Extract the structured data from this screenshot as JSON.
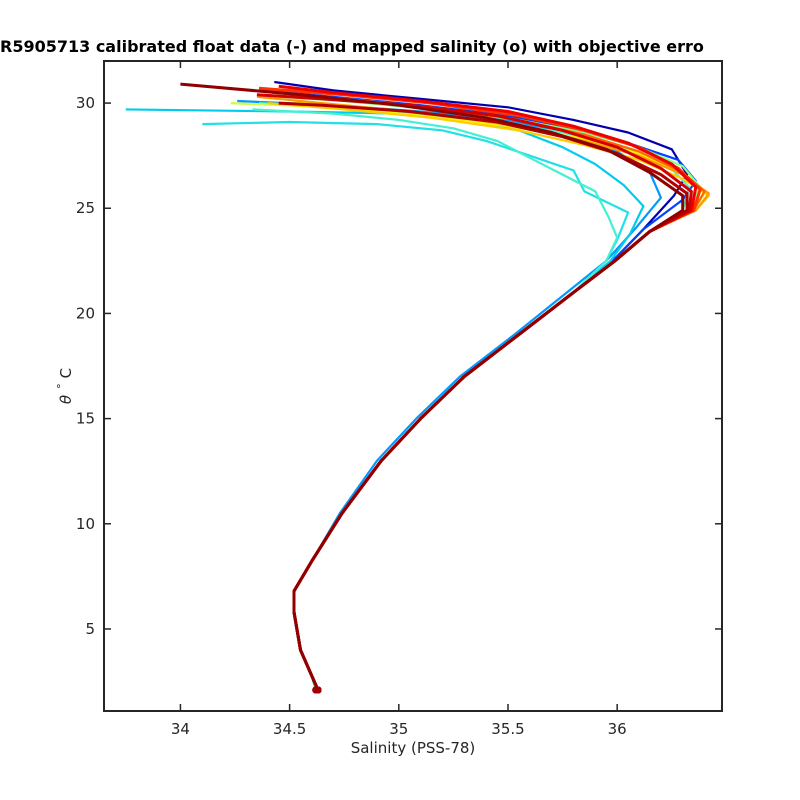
{
  "chart_data": {
    "type": "line",
    "title": "R5905713 calibrated float data (-) and mapped salinity (o) with objective erro",
    "xlabel": "Salinity (PSS-78)",
    "ylabel_symbol": "θ",
    "ylabel_degree": "°",
    "ylabel_unit": "C",
    "xlim": [
      33.65,
      36.48
    ],
    "ylim": [
      1.1,
      32.0
    ],
    "x_ticks": [
      34,
      34.5,
      35,
      35.5,
      36
    ],
    "x_tick_labels": [
      "34",
      "34.5",
      "35",
      "35.5",
      "36"
    ],
    "y_ticks": [
      5,
      10,
      15,
      20,
      25,
      30
    ],
    "y_tick_labels": [
      "5",
      "10",
      "15",
      "20",
      "25",
      "30"
    ],
    "grid": false,
    "colormap": "jet (profile index)",
    "series_colors": [
      "#0000b0",
      "#0044ff",
      "#0099ff",
      "#00ccee",
      "#22e0e8",
      "#44f0d0",
      "#55f2c0",
      "#88ff88",
      "#ccff44",
      "#ffee00",
      "#ffcc00",
      "#ff9900",
      "#ff6600",
      "#ff3300",
      "#ee0000",
      "#d40000",
      "#b00000",
      "#900000"
    ],
    "series": [
      {
        "x": [
          34.63,
          34.6,
          34.55,
          34.52,
          34.52,
          34.6,
          34.74,
          34.92,
          35.1,
          35.3,
          35.55,
          35.8,
          35.98,
          36.12,
          36.26,
          36.32,
          36.25,
          36.05,
          35.8,
          35.5,
          35.1,
          34.7,
          34.43
        ],
        "y": [
          2.1,
          2.8,
          4.0,
          5.8,
          6.8,
          8.2,
          10.5,
          13.0,
          15.0,
          17.0,
          19.0,
          21.0,
          22.5,
          24.0,
          25.6,
          26.6,
          27.8,
          28.6,
          29.2,
          29.8,
          30.2,
          30.6,
          31.0
        ]
      },
      {
        "x": [
          34.63,
          34.6,
          34.55,
          34.52,
          34.52,
          34.6,
          34.74,
          34.92,
          35.1,
          35.3,
          35.55,
          35.8,
          35.98,
          36.12,
          36.3,
          36.36,
          36.28,
          36.05,
          35.8,
          35.5,
          35.1,
          34.7,
          34.37
        ],
        "y": [
          2.1,
          2.8,
          4.0,
          5.8,
          6.8,
          8.2,
          10.5,
          13.0,
          15.0,
          17.0,
          19.0,
          21.0,
          22.5,
          24.0,
          25.4,
          26.3,
          27.3,
          28.1,
          28.8,
          29.4,
          29.9,
          30.3,
          30.6
        ]
      },
      {
        "x": [
          34.62,
          34.6,
          34.55,
          34.52,
          34.52,
          34.6,
          34.73,
          34.9,
          35.08,
          35.28,
          35.53,
          35.77,
          35.95,
          36.08,
          36.2,
          36.15,
          36.0,
          35.8,
          35.5,
          35.1,
          34.7,
          34.26
        ],
        "y": [
          2.1,
          2.8,
          4.0,
          5.8,
          6.8,
          8.2,
          10.5,
          13.0,
          15.0,
          17.0,
          19.0,
          21.0,
          22.5,
          24.0,
          25.5,
          26.7,
          27.7,
          28.5,
          29.2,
          29.6,
          29.9,
          30.1
        ]
      },
      {
        "x": [
          34.62,
          34.6,
          34.55,
          34.52,
          34.52,
          34.6,
          34.74,
          34.92,
          35.1,
          35.3,
          35.55,
          35.8,
          35.97,
          36.06,
          36.12,
          36.03,
          35.9,
          35.75,
          35.55,
          35.3,
          35.0,
          34.5,
          33.75
        ],
        "y": [
          2.1,
          2.8,
          4.0,
          5.8,
          6.8,
          8.2,
          10.5,
          13.0,
          15.0,
          17.0,
          19.0,
          21.0,
          22.5,
          23.8,
          25.1,
          26.1,
          27.1,
          27.9,
          28.7,
          29.2,
          29.5,
          29.6,
          29.7
        ]
      },
      {
        "x": [
          34.62,
          34.6,
          34.55,
          34.52,
          34.52,
          34.6,
          34.74,
          34.92,
          35.1,
          35.3,
          35.55,
          35.8,
          35.95,
          36.0,
          36.05,
          35.85,
          35.8,
          35.6,
          35.4,
          35.2,
          34.9,
          34.5,
          34.1
        ],
        "y": [
          2.1,
          2.8,
          4.0,
          5.8,
          6.8,
          8.2,
          10.5,
          13.0,
          15.0,
          17.0,
          19.0,
          21.0,
          22.5,
          23.5,
          24.8,
          25.8,
          26.8,
          27.5,
          28.2,
          28.7,
          29.0,
          29.1,
          29.0
        ]
      },
      {
        "x": [
          34.62,
          34.6,
          34.55,
          34.52,
          34.52,
          34.6,
          34.74,
          34.92,
          35.1,
          35.3,
          35.55,
          35.8,
          35.95,
          36.0,
          35.96,
          35.9,
          35.75,
          35.6,
          35.45,
          35.25,
          35.0,
          34.7,
          34.33
        ],
        "y": [
          2.1,
          2.8,
          4.0,
          5.8,
          6.8,
          8.2,
          10.5,
          13.0,
          15.0,
          17.0,
          19.0,
          21.0,
          22.5,
          23.6,
          24.6,
          25.8,
          26.6,
          27.4,
          28.2,
          28.8,
          29.2,
          29.5,
          29.7
        ]
      },
      {
        "x": [
          34.63,
          34.6,
          34.55,
          34.52,
          34.52,
          34.6,
          34.74,
          34.92,
          35.1,
          35.3,
          35.55,
          35.8,
          35.99,
          36.15,
          36.3,
          36.33,
          36.22,
          36.0,
          35.75,
          35.45,
          35.05,
          34.65,
          34.36
        ],
        "y": [
          2.1,
          2.8,
          4.0,
          5.8,
          6.8,
          8.2,
          10.5,
          13.0,
          15.0,
          17.0,
          19.0,
          21.0,
          22.5,
          23.9,
          24.9,
          26.0,
          27.2,
          28.0,
          28.6,
          29.1,
          29.5,
          29.8,
          30.0
        ]
      },
      {
        "x": [
          34.63,
          34.6,
          34.55,
          34.52,
          34.52,
          34.6,
          34.74,
          34.92,
          35.1,
          35.3,
          35.55,
          35.8,
          35.99,
          36.15,
          36.33,
          36.38,
          36.3,
          36.1,
          35.85,
          35.55,
          35.15,
          34.75,
          34.45
        ],
        "y": [
          2.1,
          2.8,
          4.0,
          5.8,
          6.8,
          8.2,
          10.5,
          13.0,
          15.0,
          17.0,
          19.0,
          21.0,
          22.5,
          23.9,
          25.0,
          26.0,
          27.0,
          27.9,
          28.6,
          29.2,
          29.7,
          30.1,
          30.3
        ]
      },
      {
        "x": [
          34.63,
          34.6,
          34.55,
          34.52,
          34.52,
          34.6,
          34.74,
          34.92,
          35.1,
          35.3,
          35.55,
          35.8,
          35.99,
          36.15,
          36.35,
          36.4,
          36.3,
          36.1,
          35.85,
          35.5,
          35.1,
          34.7,
          34.23
        ],
        "y": [
          2.1,
          2.8,
          4.0,
          5.8,
          6.8,
          8.2,
          10.5,
          13.0,
          15.0,
          17.0,
          19.0,
          21.0,
          22.5,
          23.9,
          24.9,
          25.7,
          26.7,
          27.6,
          28.3,
          28.9,
          29.4,
          29.8,
          30.0
        ]
      },
      {
        "x": [
          34.63,
          34.6,
          34.55,
          34.52,
          34.52,
          34.6,
          34.74,
          34.92,
          35.1,
          35.3,
          35.55,
          35.8,
          35.99,
          36.15,
          36.34,
          36.38,
          36.28,
          36.1,
          35.85,
          35.5,
          35.1,
          34.7,
          34.52
        ],
        "y": [
          2.1,
          2.8,
          4.0,
          5.8,
          6.8,
          8.2,
          10.5,
          13.0,
          15.0,
          17.0,
          19.0,
          21.0,
          22.5,
          23.9,
          24.9,
          25.8,
          26.8,
          27.6,
          28.3,
          28.9,
          29.4,
          29.8,
          30.1
        ]
      },
      {
        "x": [
          34.63,
          34.6,
          34.55,
          34.52,
          34.52,
          34.6,
          34.74,
          34.92,
          35.1,
          35.3,
          35.55,
          35.8,
          35.99,
          36.15,
          36.36,
          36.42,
          36.3,
          36.1,
          35.85,
          35.55,
          35.15,
          34.75,
          34.4
        ],
        "y": [
          2.1,
          2.8,
          4.0,
          5.8,
          6.8,
          8.2,
          10.5,
          13.0,
          15.0,
          17.0,
          19.0,
          21.0,
          22.5,
          23.9,
          24.9,
          25.6,
          26.4,
          27.3,
          28.0,
          28.7,
          29.3,
          29.7,
          30.0
        ]
      },
      {
        "x": [
          34.63,
          34.6,
          34.55,
          34.52,
          34.52,
          34.6,
          34.74,
          34.92,
          35.1,
          35.3,
          35.55,
          35.8,
          35.99,
          36.15,
          36.36,
          36.42,
          36.3,
          36.1,
          35.85,
          35.55,
          35.15,
          34.75,
          34.35
        ],
        "y": [
          2.1,
          2.8,
          4.0,
          5.8,
          6.8,
          8.2,
          10.5,
          13.0,
          15.0,
          17.0,
          19.0,
          21.0,
          22.5,
          23.9,
          24.9,
          25.7,
          26.6,
          27.5,
          28.2,
          28.9,
          29.5,
          29.9,
          30.3
        ]
      },
      {
        "x": [
          34.63,
          34.6,
          34.55,
          34.52,
          34.52,
          34.6,
          34.74,
          34.92,
          35.1,
          35.3,
          35.55,
          35.8,
          35.99,
          36.15,
          36.35,
          36.4,
          36.3,
          36.1,
          35.85,
          35.55,
          35.15,
          34.75,
          34.42
        ],
        "y": [
          2.1,
          2.8,
          4.0,
          5.8,
          6.8,
          8.2,
          10.5,
          13.0,
          15.0,
          17.0,
          19.0,
          21.0,
          22.5,
          23.9,
          24.9,
          25.8,
          26.7,
          27.7,
          28.5,
          29.2,
          29.8,
          30.2,
          30.5
        ]
      },
      {
        "x": [
          34.63,
          34.6,
          34.55,
          34.52,
          34.52,
          34.6,
          34.74,
          34.92,
          35.1,
          35.3,
          35.55,
          35.8,
          35.99,
          36.15,
          36.35,
          36.38,
          36.28,
          36.1,
          35.85,
          35.55,
          35.15,
          34.75,
          34.36
        ],
        "y": [
          2.1,
          2.8,
          4.0,
          5.8,
          6.8,
          8.2,
          10.5,
          13.0,
          15.0,
          17.0,
          19.0,
          21.0,
          22.5,
          23.9,
          24.9,
          25.9,
          26.9,
          27.9,
          28.7,
          29.4,
          30.0,
          30.4,
          30.7
        ]
      },
      {
        "x": [
          34.63,
          34.6,
          34.55,
          34.52,
          34.52,
          34.6,
          34.74,
          34.92,
          35.1,
          35.3,
          35.55,
          35.8,
          35.99,
          36.15,
          36.34,
          36.36,
          36.25,
          36.05,
          35.8,
          35.5,
          35.1,
          34.7,
          34.45
        ],
        "y": [
          2.1,
          2.8,
          4.0,
          5.8,
          6.8,
          8.2,
          10.5,
          13.0,
          15.0,
          17.0,
          19.0,
          21.0,
          22.5,
          23.9,
          24.9,
          26.0,
          27.1,
          28.1,
          28.9,
          29.6,
          30.1,
          30.5,
          30.8
        ]
      },
      {
        "x": [
          34.63,
          34.6,
          34.55,
          34.52,
          34.52,
          34.6,
          34.74,
          34.92,
          35.1,
          35.3,
          35.55,
          35.8,
          35.99,
          36.15,
          36.33,
          36.34,
          36.2,
          36.0,
          35.75,
          35.45,
          35.05,
          34.65,
          34.35
        ],
        "y": [
          2.1,
          2.8,
          4.0,
          5.8,
          6.8,
          8.2,
          10.5,
          13.0,
          15.0,
          17.0,
          19.0,
          21.0,
          22.5,
          23.9,
          24.9,
          25.8,
          26.9,
          27.9,
          28.7,
          29.4,
          29.9,
          30.2,
          30.4
        ]
      },
      {
        "x": [
          34.63,
          34.6,
          34.55,
          34.52,
          34.52,
          34.6,
          34.74,
          34.92,
          35.1,
          35.3,
          35.55,
          35.8,
          35.99,
          36.15,
          36.32,
          36.32,
          36.2,
          36.0,
          35.75,
          35.45,
          35.05,
          34.65,
          34.45
        ],
        "y": [
          2.1,
          2.8,
          4.0,
          5.8,
          6.8,
          8.2,
          10.5,
          13.0,
          15.0,
          17.0,
          19.0,
          21.0,
          22.5,
          23.9,
          24.9,
          25.7,
          26.6,
          27.6,
          28.4,
          29.1,
          29.6,
          29.9,
          30.0
        ]
      },
      {
        "x": [
          34.63,
          34.6,
          34.55,
          34.52,
          34.52,
          34.6,
          34.74,
          34.92,
          35.1,
          35.3,
          35.55,
          35.8,
          35.99,
          36.15,
          36.3,
          36.3,
          36.15,
          35.95,
          35.7,
          35.4,
          35.0,
          34.55,
          34.0
        ],
        "y": [
          2.1,
          2.8,
          4.0,
          5.8,
          6.8,
          8.2,
          10.5,
          13.0,
          15.0,
          17.0,
          19.0,
          21.0,
          22.5,
          23.9,
          24.9,
          25.6,
          26.7,
          27.8,
          28.6,
          29.3,
          29.9,
          30.4,
          30.9
        ]
      }
    ]
  }
}
